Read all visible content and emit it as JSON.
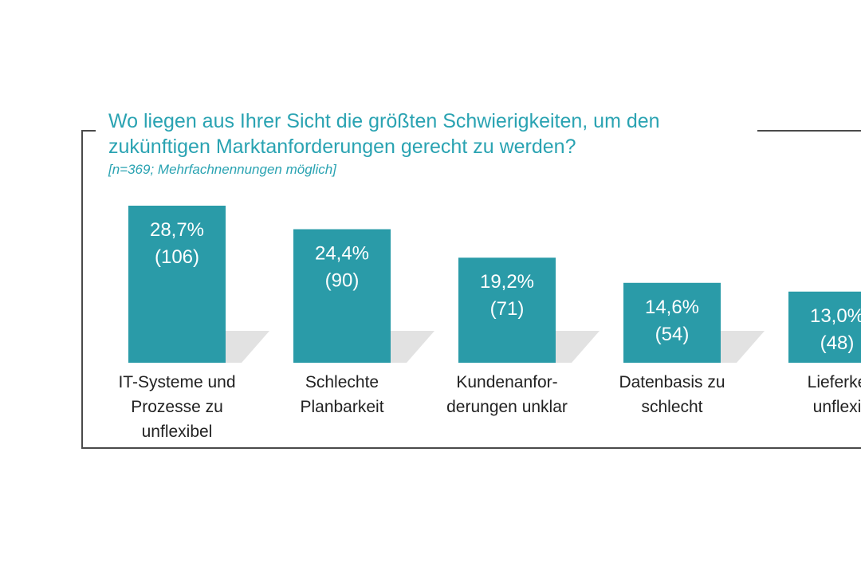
{
  "header": {
    "title": "Wo liegen aus Ihrer Sicht die größten Schwierigkeiten, um den zukünftigen Marktanforderungen gerecht zu werden?",
    "subtitle": "[n=369; Mehrfachnennungen möglich]"
  },
  "colors": {
    "bar": "#2a9ba8",
    "shadow": "#cfcfcf",
    "title": "#2aa3b2",
    "frame": "#4a4a4a"
  },
  "chart_data": {
    "type": "bar",
    "title": "Wo liegen aus Ihrer Sicht die größten Schwierigkeiten, um den zukünftigen Marktanforderungen gerecht zu werden?",
    "subtitle": "[n=369; Mehrfachnennungen möglich]",
    "categories": [
      "IT-Systeme und\nProzesse zu\nunflexibel",
      "Schlechte\nPlanbarkeit",
      "Kundenanfor-\nderungen unklar",
      "Datenbasis zu\nschlecht",
      "Lieferke\nunflexi"
    ],
    "values": [
      28.7,
      24.4,
      19.2,
      14.6,
      13.0
    ],
    "counts": [
      106,
      90,
      71,
      54,
      48
    ],
    "value_labels": [
      "28,7%",
      "24,4%",
      "19,2%",
      "14,6%",
      "13,0%"
    ],
    "count_labels": [
      "(106)",
      "(90)",
      "(71)",
      "(54)",
      "(48)"
    ],
    "ylim": [
      0,
      28.7
    ],
    "grid": false,
    "legend": "none"
  }
}
